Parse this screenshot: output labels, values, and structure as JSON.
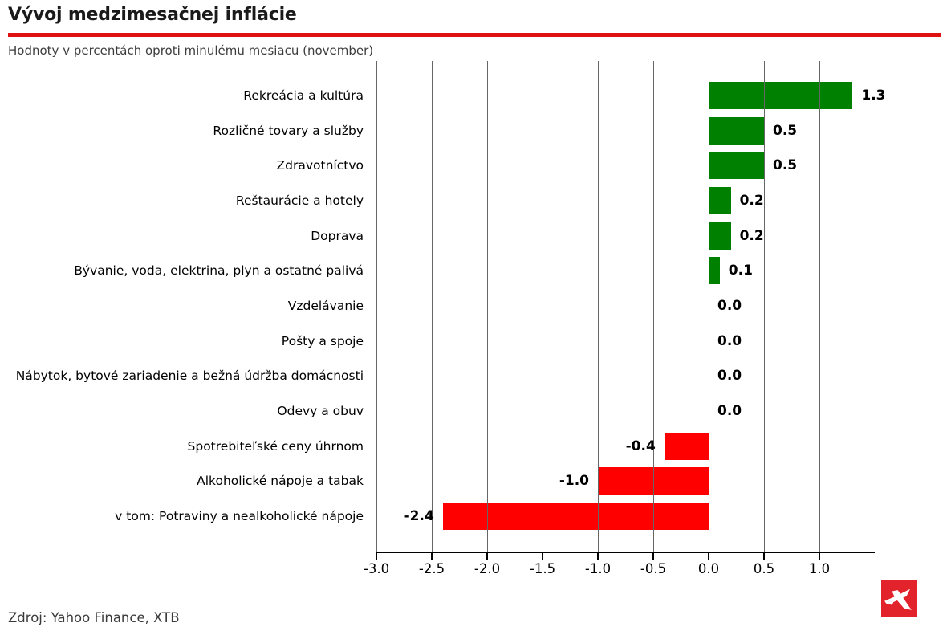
{
  "header": {
    "title": "Vývoj medzimesačnej inflácie",
    "subtitle": "Hodnoty v percentách oproti minulému mesiacu (november)",
    "rule_color": "#e01111"
  },
  "footer": {
    "source": "Zdroj: Yahoo Finance, XTB"
  },
  "logo": {
    "name": "xtb-logo",
    "bg_color": "#e2232b",
    "glyph_color": "#ffffff"
  },
  "chart_data": {
    "type": "bar",
    "orientation": "horizontal",
    "title": "Vývoj medzimesačnej inflácie",
    "subtitle": "Hodnoty v percentách oproti minulému mesiacu (november)",
    "categories": [
      "Rekreácia a kultúra",
      "Rozličné tovary a služby",
      "Zdravotníctvo",
      "Reštaurácie a hotely",
      "Doprava",
      "Bývanie, voda, elektrina, plyn a ostatné palivá",
      "Vzdelávanie",
      "Pošty a spoje",
      "Nábytok, bytové zariadenie a bežná údržba domácnosti",
      "Odevy a obuv",
      "Spotrebiteľské ceny úhrnom",
      "Alkoholické nápoje a tabak",
      "v tom: Potraviny a nealkoholické nápoje"
    ],
    "values": [
      1.3,
      0.5,
      0.5,
      0.2,
      0.2,
      0.1,
      0.0,
      0.0,
      0.0,
      0.0,
      -0.4,
      -1.0,
      -2.4
    ],
    "value_labels": [
      "1.3",
      "0.5",
      "0.5",
      "0.2",
      "0.2",
      "0.1",
      "0.0",
      "0.0",
      "0.0",
      "0.0",
      "-0.4",
      "-1.0",
      "-2.4"
    ],
    "xlim": [
      -3.0,
      1.5
    ],
    "xticks": [
      -3.0,
      -2.5,
      -2.0,
      -1.5,
      -1.0,
      -0.5,
      0.0,
      0.5,
      1.0
    ],
    "xtick_labels": [
      "-3.0",
      "-2.5",
      "-2.0",
      "-1.5",
      "-1.0",
      "-0.5",
      "0.0",
      "0.5",
      "1.0"
    ],
    "xlabel": "",
    "ylabel": "",
    "grid": "vertical",
    "grid_on_top_of_bars": true,
    "legend": "none",
    "positive_color": "#008000",
    "negative_color": "#ff0000",
    "value_label_color": "#000000"
  }
}
